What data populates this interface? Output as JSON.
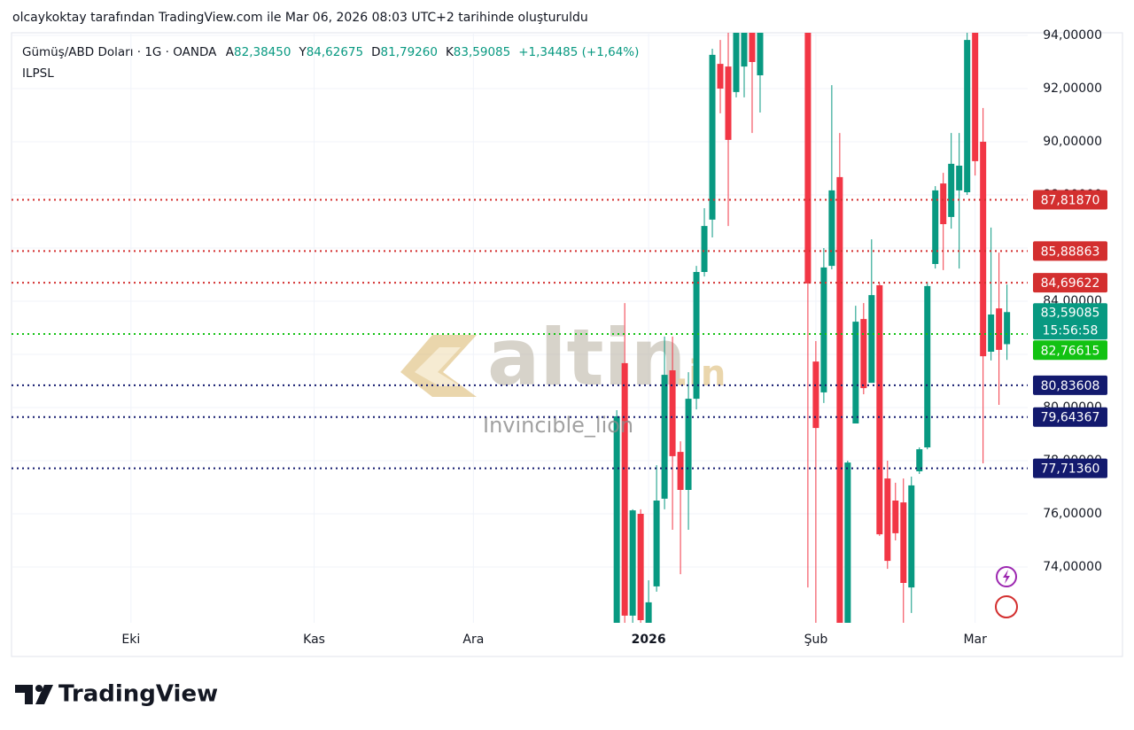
{
  "header": {
    "caption": "olcaykoktay tarafından TradingView.com ile Mar 06, 2026 08:03 UTC+2 tarihinde oluşturuldu",
    "symbol": "Gümüş/ABD Doları · 1G · OANDA",
    "ohlc_legend": [
      {
        "key": "A",
        "value": "82,38450"
      },
      {
        "key": "Y",
        "value": "84,62675"
      },
      {
        "key": "D",
        "value": "81,79260"
      },
      {
        "key": "K",
        "value": "83,59085"
      }
    ],
    "change": "+1,34485 (+1,64%)",
    "indicator": "ILPSL"
  },
  "watermark": {
    "logo": "altin",
    "logo_suffix": ".in",
    "author": "Invincible_lion"
  },
  "footer": {
    "brand": "TradingView"
  },
  "chart_data": {
    "type": "candlestick",
    "x": [
      0,
      1,
      2,
      3,
      4,
      5,
      6,
      7,
      8,
      9,
      10,
      11,
      12,
      13,
      14,
      15,
      16,
      17,
      18,
      24,
      25,
      26,
      27,
      28,
      29,
      30,
      31,
      32,
      33,
      34,
      35,
      36,
      37,
      38,
      39,
      40,
      41,
      42,
      43,
      44,
      45,
      46,
      47,
      48,
      49
    ],
    "open": [
      71.5,
      81.67,
      72.17,
      76.0,
      71.5,
      73.27,
      76.57,
      81.4,
      78.33,
      76.9,
      80.33,
      85.1,
      87.07,
      92.93,
      92.83,
      91.87,
      92.83,
      94.3,
      92.5,
      95.0,
      81.73,
      80.57,
      85.33,
      88.67,
      71.6,
      79.4,
      83.33,
      80.93,
      84.6,
      77.33,
      76.5,
      76.43,
      73.23,
      77.6,
      78.5,
      85.4,
      88.43,
      87.17,
      88.17,
      88.1,
      94.3,
      90.0,
      82.1,
      83.73,
      82.3845
    ],
    "high": [
      79.9,
      83.93,
      76.17,
      76.17,
      73.5,
      77.83,
      82.67,
      82.67,
      78.73,
      81.33,
      85.33,
      87.5,
      93.5,
      93.83,
      94.3,
      94.5,
      94.5,
      94.5,
      94.5,
      95.5,
      82.5,
      86.0,
      92.13,
      90.33,
      78.0,
      83.83,
      83.93,
      86.33,
      84.67,
      78.0,
      77.17,
      77.33,
      77.4,
      78.5,
      84.73,
      88.33,
      88.83,
      90.33,
      90.33,
      94.17,
      94.5,
      91.27,
      86.77,
      85.83,
      84.62675
    ],
    "low": [
      71.5,
      71.5,
      71.5,
      71.5,
      71.5,
      73.07,
      76.17,
      75.4,
      73.73,
      75.4,
      79.93,
      84.93,
      86.4,
      91.07,
      86.83,
      91.67,
      91.67,
      90.33,
      91.1,
      73.23,
      71.5,
      80.17,
      85.2,
      71.5,
      71.5,
      79.4,
      80.5,
      80.93,
      75.17,
      73.93,
      75.0,
      71.5,
      72.27,
      77.5,
      78.43,
      85.23,
      85.17,
      86.73,
      85.23,
      88.0,
      88.73,
      77.9,
      81.77,
      80.1,
      81.7926
    ],
    "close": [
      79.67,
      72.17,
      76.13,
      72.0,
      72.67,
      76.5,
      81.23,
      78.17,
      76.9,
      80.33,
      85.1,
      86.83,
      93.27,
      92.0,
      90.07,
      94.3,
      94.3,
      93.0,
      94.3,
      84.67,
      79.23,
      85.27,
      88.17,
      71.6,
      77.93,
      83.23,
      80.73,
      84.23,
      75.23,
      74.23,
      75.27,
      73.4,
      77.07,
      78.43,
      84.57,
      88.17,
      86.9,
      89.17,
      89.1,
      93.83,
      89.27,
      81.93,
      83.5,
      82.17,
      83.59085
    ],
    "up_color": "#089981",
    "down_color": "#f23645",
    "xlim": [
      -76,
      51.6
    ],
    "xticks": [
      {
        "value": -61,
        "label": "Eki"
      },
      {
        "value": -38,
        "label": "Kas"
      },
      {
        "value": -18,
        "label": "Ara"
      },
      {
        "value": 4,
        "label": "2026"
      },
      {
        "value": 25,
        "label": "Şub"
      },
      {
        "value": 45,
        "label": "Mar"
      }
    ],
    "ylim": [
      71.9,
      94.1
    ],
    "yticks": [
      {
        "value": 74,
        "label": "74,00000"
      },
      {
        "value": 76,
        "label": "76,00000"
      },
      {
        "value": 78,
        "label": "78,00000"
      },
      {
        "value": 80,
        "label": "80,00000"
      },
      {
        "value": 82,
        "label": "82,00000"
      },
      {
        "value": 84,
        "label": "84,00000"
      },
      {
        "value": 86,
        "label": "86,00000"
      },
      {
        "value": 88,
        "label": "88,00000"
      },
      {
        "value": 90,
        "label": "90,00000"
      },
      {
        "value": 92,
        "label": "92,00000"
      },
      {
        "value": 94,
        "label": "94,00000"
      }
    ],
    "grid": true,
    "price_levels": [
      {
        "value": 87.8187,
        "label": "87,81870",
        "color": "#d32f2f"
      },
      {
        "value": 85.88863,
        "label": "85,88863",
        "color": "#d32f2f"
      },
      {
        "value": 84.69622,
        "label": "84,69622",
        "color": "#d32f2f"
      },
      {
        "value": 82.76615,
        "label": "82,76615",
        "color": "#12c212"
      },
      {
        "value": 80.83608,
        "label": "80,83608",
        "color": "#131a6e"
      },
      {
        "value": 79.64367,
        "label": "79,64367",
        "color": "#131a6e"
      },
      {
        "value": 77.7136,
        "label": "77,71360",
        "color": "#131a6e"
      }
    ],
    "last_price": {
      "value": 83.59085,
      "label": "83,59085",
      "countdown": "15:56:58",
      "color": "#089981"
    }
  }
}
